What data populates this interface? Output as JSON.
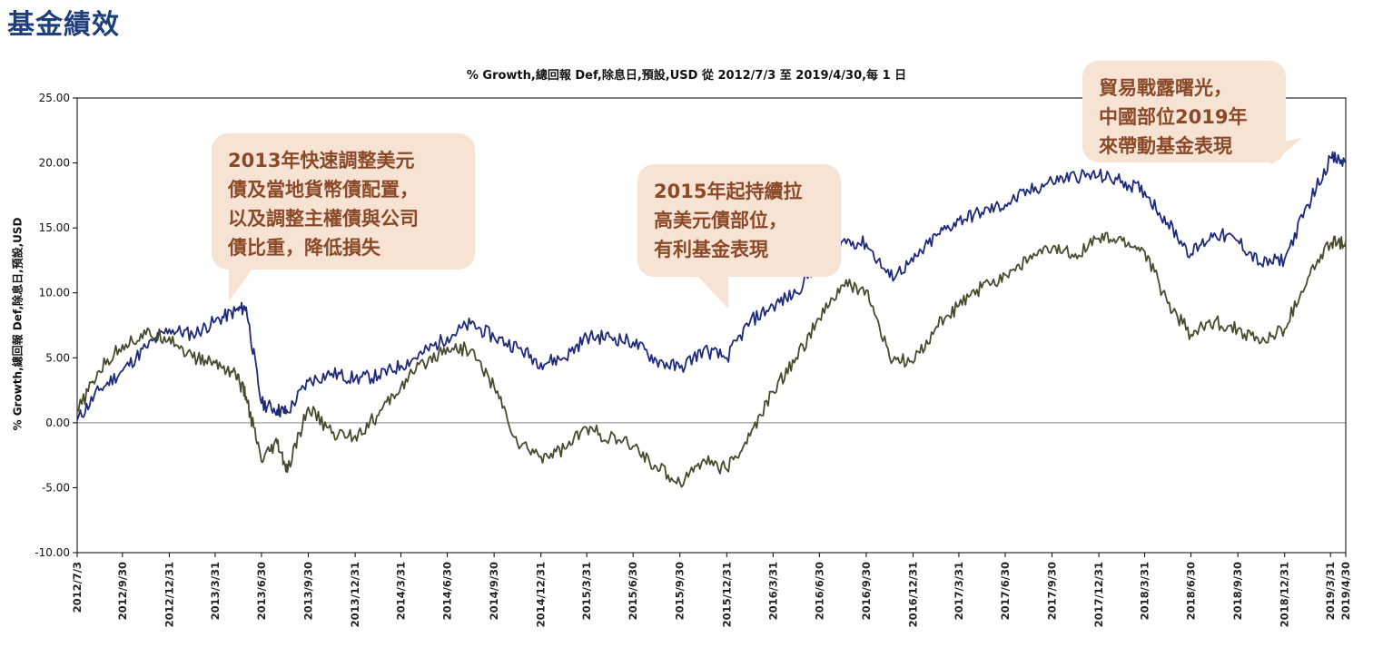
{
  "page_title": "基金績效",
  "chart_data": {
    "type": "line",
    "title": "% Growth,總回報 Def,除息日,預設,USD 從 2012/7/3 至 2019/4/30,每 1 日",
    "ylabel": "% Growth,總回報 Def,除息日,預設,USD",
    "xlabel": "",
    "ylim": [
      -10,
      25
    ],
    "y_ticks": [
      "25.00",
      "20.00",
      "15.00",
      "10.00",
      "5.00",
      "0.00",
      "-5.00",
      "-10.00"
    ],
    "x_ticks": [
      "2012/7/3",
      "2012/9/30",
      "2012/12/31",
      "2013/3/31",
      "2013/6/30",
      "2013/9/30",
      "2013/12/31",
      "2014/3/31",
      "2014/6/30",
      "2014/9/30",
      "2014/12/31",
      "2015/3/31",
      "2015/6/30",
      "2015/9/30",
      "2015/12/31",
      "2016/3/31",
      "2016/6/30",
      "2016/9/30",
      "2016/12/31",
      "2017/3/31",
      "2017/6/30",
      "2017/9/30",
      "2017/12/31",
      "2018/3/31",
      "2018/6/30",
      "2018/9/30",
      "2018/12/31",
      "2019/3/31",
      "2019/4/30"
    ],
    "grid": "horizontal-zero-line",
    "series": [
      {
        "color": "#1f2a7a",
        "x": [
          "2012-07-03",
          "2012-08-15",
          "2012-09-30",
          "2012-11-15",
          "2012-12-31",
          "2013-02-15",
          "2013-03-31",
          "2013-05-10",
          "2013-05-31",
          "2013-06-30",
          "2013-07-31",
          "2013-08-20",
          "2013-09-30",
          "2013-11-15",
          "2013-12-31",
          "2014-02-15",
          "2014-03-31",
          "2014-05-15",
          "2014-06-30",
          "2014-08-15",
          "2014-09-30",
          "2014-11-15",
          "2014-12-31",
          "2015-02-15",
          "2015-03-31",
          "2015-05-15",
          "2015-06-30",
          "2015-08-15",
          "2015-09-30",
          "2015-11-15",
          "2015-12-31",
          "2016-02-15",
          "2016-03-31",
          "2016-05-15",
          "2016-06-30",
          "2016-08-15",
          "2016-09-30",
          "2016-11-15",
          "2016-12-31",
          "2017-02-15",
          "2017-03-31",
          "2017-05-15",
          "2017-06-30",
          "2017-08-15",
          "2017-09-30",
          "2017-11-15",
          "2017-12-31",
          "2018-02-15",
          "2018-03-31",
          "2018-05-15",
          "2018-06-30",
          "2018-08-15",
          "2018-09-30",
          "2018-11-15",
          "2018-12-31",
          "2019-02-15",
          "2019-03-31",
          "2019-04-30"
        ],
        "values": [
          0.2,
          2.5,
          4.0,
          5.8,
          7.2,
          6.8,
          7.8,
          8.6,
          8.9,
          1.5,
          1.0,
          0.8,
          3.2,
          3.8,
          3.4,
          3.6,
          4.4,
          5.4,
          6.6,
          7.6,
          6.6,
          5.8,
          4.6,
          5.0,
          6.6,
          6.6,
          6.2,
          4.8,
          4.2,
          5.6,
          5.0,
          7.8,
          9.0,
          10.0,
          12.6,
          14.0,
          13.8,
          11.2,
          12.4,
          14.4,
          15.6,
          16.2,
          16.8,
          17.8,
          18.6,
          19.0,
          19.0,
          18.6,
          17.8,
          15.4,
          13.0,
          14.6,
          14.0,
          12.2,
          12.6,
          16.8,
          20.4,
          20.0
        ]
      },
      {
        "color": "#4a4a2e",
        "x": [
          "2012-07-03",
          "2012-08-15",
          "2012-09-30",
          "2012-11-15",
          "2012-12-31",
          "2013-02-15",
          "2013-03-31",
          "2013-05-10",
          "2013-05-31",
          "2013-06-30",
          "2013-07-31",
          "2013-08-20",
          "2013-09-30",
          "2013-11-15",
          "2013-12-31",
          "2014-02-15",
          "2014-03-31",
          "2014-05-15",
          "2014-06-30",
          "2014-08-15",
          "2014-09-30",
          "2014-11-15",
          "2014-12-31",
          "2015-02-15",
          "2015-03-31",
          "2015-05-15",
          "2015-06-30",
          "2015-08-15",
          "2015-09-30",
          "2015-11-15",
          "2015-12-31",
          "2016-02-15",
          "2016-03-31",
          "2016-05-15",
          "2016-06-30",
          "2016-08-15",
          "2016-09-30",
          "2016-11-15",
          "2016-12-31",
          "2017-02-15",
          "2017-03-31",
          "2017-05-15",
          "2017-06-30",
          "2017-08-15",
          "2017-09-30",
          "2017-11-15",
          "2017-12-31",
          "2018-02-15",
          "2018-03-31",
          "2018-05-15",
          "2018-06-30",
          "2018-08-15",
          "2018-09-30",
          "2018-11-15",
          "2018-12-31",
          "2019-02-15",
          "2019-03-31",
          "2019-04-30"
        ],
        "values": [
          0.8,
          4.0,
          6.0,
          6.8,
          6.6,
          5.0,
          4.6,
          3.8,
          2.0,
          -3.0,
          -1.6,
          -3.8,
          1.2,
          -0.8,
          -1.0,
          0.6,
          2.8,
          4.6,
          5.8,
          5.6,
          2.8,
          -1.6,
          -2.6,
          -2.0,
          -0.4,
          -1.2,
          -1.8,
          -3.4,
          -4.6,
          -2.8,
          -3.6,
          -1.0,
          2.4,
          5.0,
          8.0,
          10.6,
          10.2,
          5.0,
          4.6,
          7.4,
          9.0,
          10.4,
          11.4,
          12.6,
          13.4,
          13.0,
          14.2,
          14.0,
          13.2,
          9.2,
          6.8,
          7.8,
          7.2,
          6.2,
          7.2,
          11.2,
          13.8,
          14.0
        ]
      }
    ],
    "annotations": [
      "2013年快速調整美元\n債及當地貨幣債配置，\n以及調整主權債與公司\n債比重，降低損失",
      "2015年起持續拉\n高美元債部位，\n有利基金表現",
      "貿易戰露曙光，\n中國部位2019年\n來帶動基金表現"
    ]
  },
  "colors": {
    "title": "#1f3f7a",
    "callout_bg": "#f7e3d4",
    "callout_text": "#8a4a2a",
    "axis": "#000000",
    "zero_line": "#9a9a9a"
  }
}
